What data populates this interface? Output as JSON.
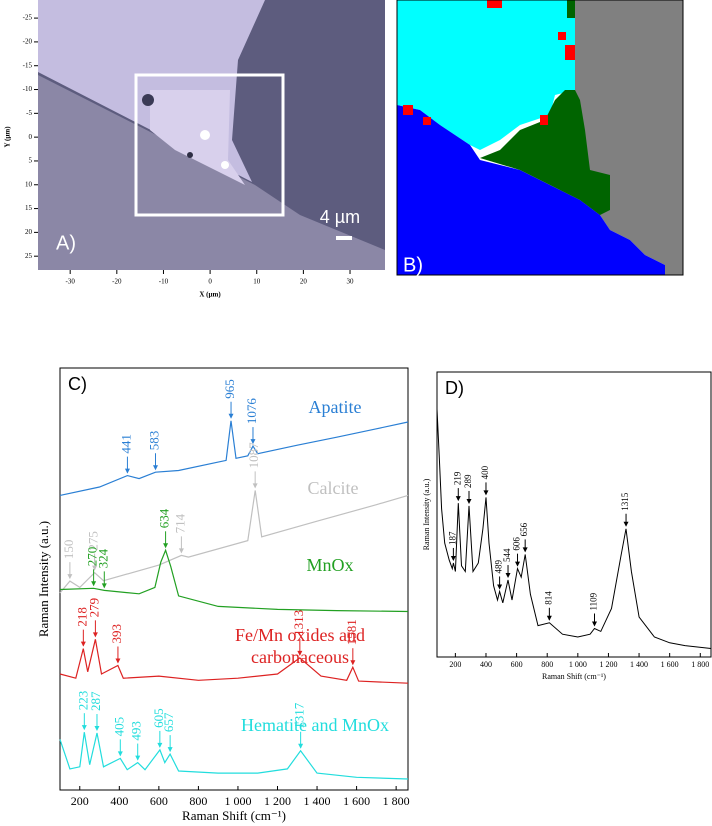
{
  "chart_data": [
    {
      "type": "image",
      "label": "A)",
      "scale_label": "4 µm",
      "xlabel": "X (µm)",
      "ylabel": "Y (µm)",
      "xlim": [
        -36.9,
        37.5
      ],
      "xticks": [
        -30,
        -20,
        -10,
        0,
        10,
        20,
        30
      ],
      "ylim": [
        -28.8,
        27.9
      ],
      "yticks": [
        -25,
        -20,
        -15,
        -10,
        -5,
        0,
        5,
        10,
        15,
        20,
        25
      ]
    },
    {
      "type": "map",
      "label": "B)"
    },
    {
      "type": "line",
      "label": "C)",
      "xlabel": "Raman Shift (cm⁻¹)",
      "ylabel": "Raman Intensity (a.u.)",
      "xlim": [
        100,
        1860
      ],
      "ylim": [
        0,
        100
      ],
      "xticks": [
        200,
        400,
        600,
        800,
        {
          "value": 1000,
          "label": "1 000"
        },
        {
          "value": 1200,
          "label": "1 200"
        },
        {
          "value": 1400,
          "label": "1 400"
        },
        {
          "value": 1600,
          "label": "1 600"
        },
        {
          "value": 1800,
          "label": "1 800"
        }
      ],
      "series": [
        {
          "name": "Apatite",
          "color": "#2a7fd4",
          "x": [
            100,
            300,
            441,
            500,
            583,
            700,
            900,
            940,
            965,
            990,
            1050,
            1076,
            1100,
            1300,
            1500,
            1700,
            1860
          ],
          "values": [
            69.8,
            71.8,
            74.5,
            73.8,
            75.3,
            75.7,
            77.7,
            78.1,
            87.5,
            78.6,
            79.2,
            81.5,
            79.7,
            81.7,
            83.6,
            85.6,
            87.2
          ],
          "peaks": [
            441,
            583,
            965,
            1076
          ]
        },
        {
          "name": "Calcite",
          "color": "#c0c0c0",
          "x": [
            100,
            150,
            200,
            275,
            320,
            600,
            714,
            750,
            1050,
            1087,
            1120,
            1400,
            1700,
            1860
          ],
          "values": [
            46.7,
            49.5,
            48.0,
            51.5,
            49.6,
            53.3,
            55.6,
            55.2,
            59.1,
            71.0,
            60.0,
            63.7,
            67.6,
            69.8
          ],
          "peaks": [
            150,
            275,
            714,
            1087
          ]
        },
        {
          "name": "MnOx",
          "color": "#22a022",
          "x": [
            100,
            270,
            324,
            500,
            580,
            610,
            634,
            660,
            700,
            900,
            1200,
            1500,
            1860
          ],
          "values": [
            47.5,
            47.8,
            47.3,
            46.5,
            48.0,
            54.0,
            56.8,
            53.0,
            46.0,
            43.5,
            42.8,
            42.5,
            42.3
          ],
          "peaks": [
            270,
            324,
            634
          ]
        },
        {
          "name": "Fe/Mn oxides and carbonaceous",
          "color": "#dd2222",
          "x": [
            100,
            180,
            218,
            240,
            279,
            310,
            393,
            420,
            600,
            800,
            1000,
            1200,
            1313,
            1420,
            1550,
            1581,
            1610,
            1860
          ],
          "values": [
            27.5,
            26.5,
            33.5,
            28.0,
            35.7,
            27.5,
            29.5,
            26.5,
            27.0,
            26.0,
            26.5,
            27.5,
            31.3,
            27.0,
            26.0,
            29.1,
            25.8,
            25.3
          ],
          "peaks": [
            218,
            279,
            393,
            1313,
            1581
          ]
        },
        {
          "name": "Hematite and MnOx",
          "color": "#22dddd",
          "x": [
            100,
            150,
            200,
            223,
            250,
            287,
            320,
            405,
            440,
            493,
            530,
            605,
            630,
            657,
            700,
            900,
            1100,
            1250,
            1317,
            1400,
            1600,
            1860
          ],
          "values": [
            12.0,
            5.0,
            5.5,
            13.7,
            6.0,
            13.5,
            5.5,
            7.5,
            4.8,
            6.5,
            4.8,
            9.5,
            6.5,
            8.5,
            4.5,
            4.0,
            4.0,
            5.0,
            9.3,
            4.0,
            3.0,
            2.6
          ],
          "peaks": [
            223,
            287,
            405,
            493,
            605,
            657,
            1317
          ]
        }
      ]
    },
    {
      "type": "line",
      "label": "D)",
      "xlabel": "Raman Shift (cm⁻¹)",
      "ylabel": "Raman Intensity (a.u.)",
      "xlim": [
        80,
        1870
      ],
      "ylim": [
        0,
        100
      ],
      "xticks": [
        200,
        400,
        600,
        800,
        {
          "value": 1000,
          "label": "1 000"
        },
        {
          "value": 1200,
          "label": "1 200"
        },
        {
          "value": 1400,
          "label": "1 400"
        },
        {
          "value": 1600,
          "label": "1 600"
        },
        {
          "value": 1800,
          "label": "1 800"
        }
      ],
      "series": [
        {
          "color": "#000000",
          "x": [
            80,
            95,
            110,
            130,
            160,
            180,
            187,
            200,
            219,
            240,
            265,
            289,
            315,
            350,
            380,
            400,
            420,
            450,
            475,
            489,
            510,
            544,
            570,
            606,
            630,
            656,
            690,
            740,
            814,
            900,
            1000,
            1080,
            1109,
            1150,
            1220,
            1280,
            1315,
            1350,
            1400,
            1500,
            1600,
            1700,
            1870
          ],
          "values": [
            87,
            70,
            52,
            40,
            34,
            31,
            33,
            30,
            54,
            32,
            30,
            53,
            30,
            33,
            45,
            56,
            40,
            25,
            20,
            23,
            19,
            27,
            20,
            31,
            28,
            36,
            22,
            11,
            12,
            8,
            7,
            8,
            10,
            9,
            17,
            35,
            45,
            30,
            14,
            7,
            5,
            4,
            3
          ],
          "peaks": [
            187,
            219,
            289,
            400,
            489,
            544,
            606,
            656,
            814,
            1109,
            1315
          ]
        }
      ]
    }
  ]
}
